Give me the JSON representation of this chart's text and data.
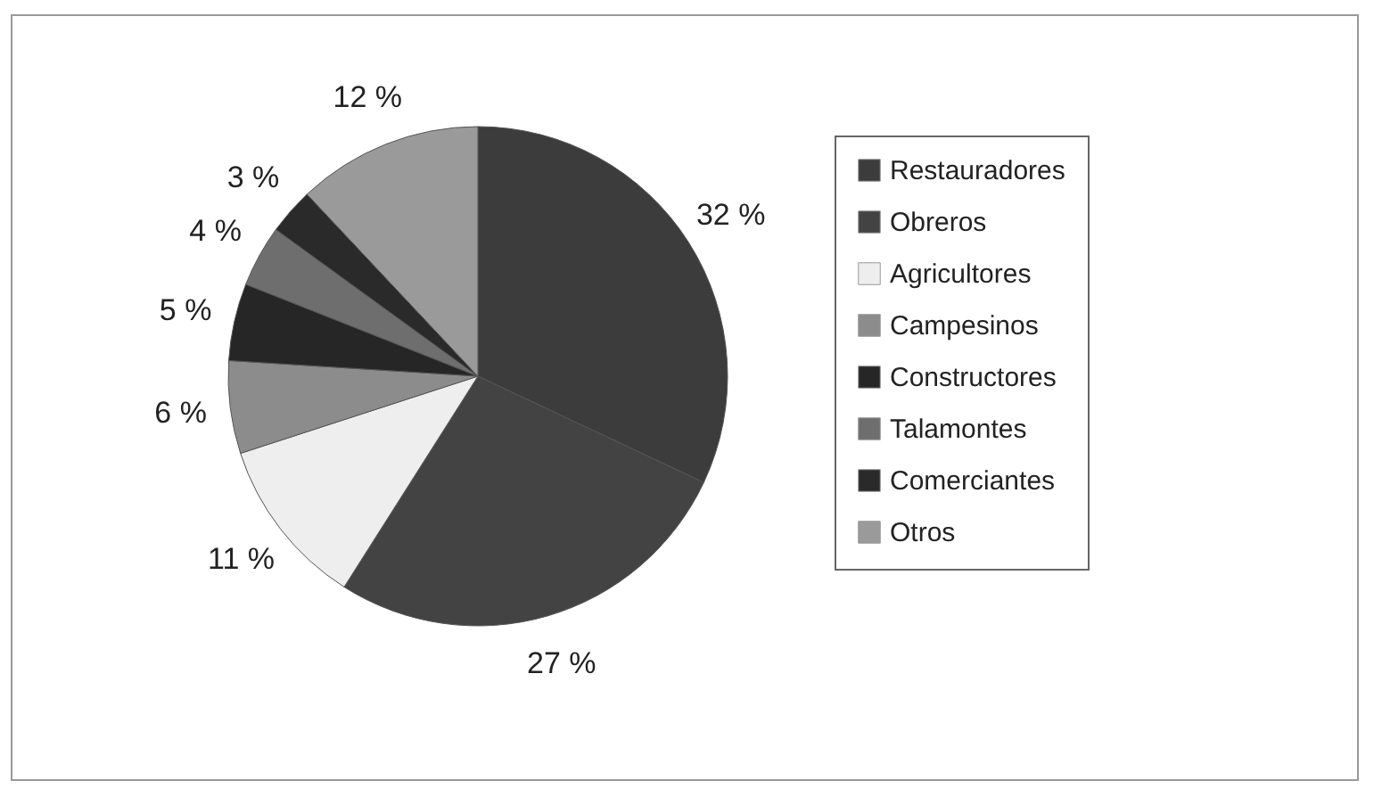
{
  "chart_data": {
    "type": "pie",
    "categories": [
      "Restauradores",
      "Obreros",
      "Agricultores",
      "Campesinos",
      "Constructores",
      "Talamontes",
      "Comerciantes",
      "Otros"
    ],
    "values": [
      32,
      27,
      11,
      6,
      5,
      4,
      3,
      12
    ],
    "colors": [
      "#3c3c3c",
      "#434343",
      "#eeeeee",
      "#8c8c8c",
      "#262626",
      "#6e6e6e",
      "#2a2a2a",
      "#9a9a9a"
    ],
    "value_labels": [
      "32 %",
      "27 %",
      "11 %",
      "6 %",
      "5 %",
      "4 %",
      "3 %",
      "12 %"
    ],
    "legend": "right"
  }
}
